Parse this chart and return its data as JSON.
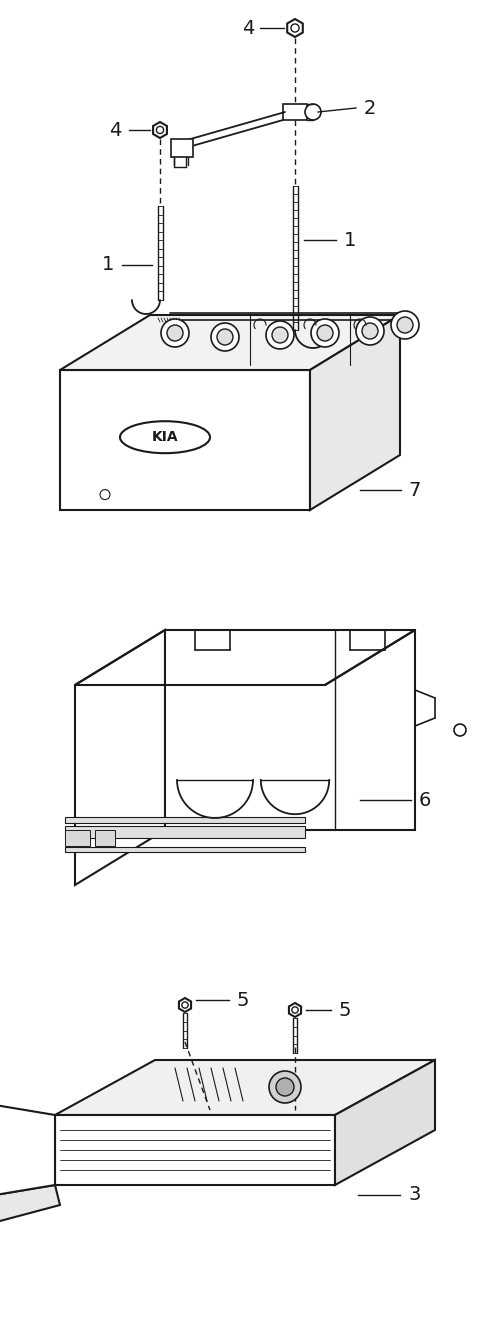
{
  "background_color": "#ffffff",
  "fig_width": 4.8,
  "fig_height": 13.23,
  "dpi": 100,
  "line_color": "#1a1a1a",
  "label_fontsize": 14,
  "lw": 1.2,
  "lw_thin": 0.7,
  "lw_thick": 1.5
}
